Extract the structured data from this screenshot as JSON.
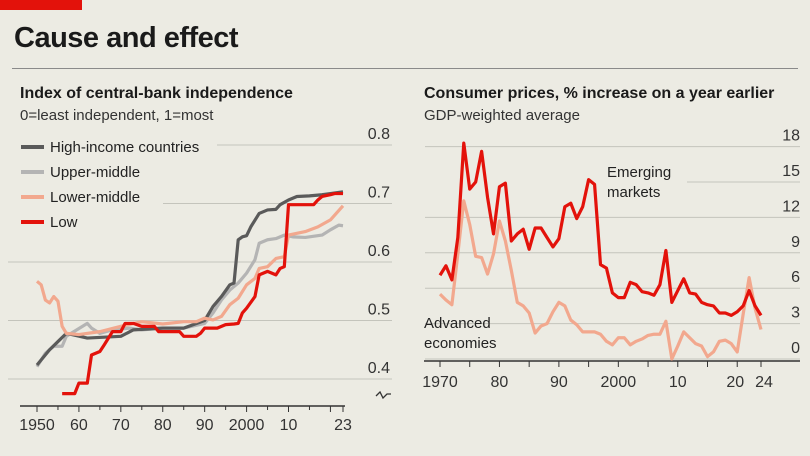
{
  "title": "Cause and effect",
  "colors": {
    "brand": "#e3120b",
    "high": "#5a5a5a",
    "upper": "#b4b4b4",
    "lower": "#f2a88e",
    "low": "#e3120b",
    "emerging": "#e3120b",
    "advanced": "#f2a88e"
  },
  "chart_data": [
    {
      "type": "line",
      "title": "Index of central-bank independence",
      "subtitle": "0=least independent, 1=most",
      "ylim": [
        0.37,
        0.8
      ],
      "yticks": [
        "0.8",
        "0.7",
        "0.6",
        "0.5",
        "0.4"
      ],
      "xticks": [
        "1950",
        "60",
        "70",
        "80",
        "90",
        "2000",
        "10",
        "23"
      ],
      "xlim": [
        1950,
        2023
      ],
      "grid": true,
      "legend": "top-left",
      "series": [
        {
          "name": "High-income countries",
          "x": [
            1950,
            1953,
            1955,
            1957,
            1962,
            1970,
            1973,
            1980,
            1985,
            1990,
            1992,
            1994,
            1996,
            1997,
            1998,
            1999,
            2000,
            2001,
            2003,
            2005,
            2007,
            2008,
            2010,
            2012,
            2015,
            2018,
            2020,
            2023
          ],
          "values": [
            0.424,
            0.45,
            0.464,
            0.478,
            0.47,
            0.473,
            0.484,
            0.487,
            0.487,
            0.5,
            0.524,
            0.541,
            0.561,
            0.564,
            0.638,
            0.643,
            0.645,
            0.66,
            0.683,
            0.689,
            0.69,
            0.698,
            0.706,
            0.712,
            0.713,
            0.715,
            0.717,
            0.72
          ]
        },
        {
          "name": "Upper-middle",
          "x": [
            1950,
            1952,
            1954,
            1956,
            1957,
            1962,
            1963,
            1965,
            1968,
            1972,
            1975,
            1980,
            1985,
            1990,
            1992,
            1994,
            1996,
            1998,
            2000,
            2002,
            2003,
            2005,
            2007,
            2009,
            2011,
            2014,
            2018,
            2020,
            2022,
            2023
          ],
          "values": [
            0.421,
            0.444,
            0.456,
            0.456,
            0.473,
            0.495,
            0.487,
            0.478,
            0.484,
            0.487,
            0.484,
            0.487,
            0.487,
            0.495,
            0.513,
            0.535,
            0.552,
            0.564,
            0.581,
            0.604,
            0.632,
            0.638,
            0.64,
            0.646,
            0.643,
            0.642,
            0.646,
            0.655,
            0.663,
            0.662
          ]
        },
        {
          "name": "Lower-middle",
          "x": [
            1950,
            1951,
            1952,
            1953,
            1954,
            1955,
            1956,
            1957,
            1960,
            1965,
            1970,
            1975,
            1980,
            1985,
            1988,
            1990,
            1992,
            1994,
            1996,
            1998,
            2000,
            2002,
            2003,
            2005,
            2007,
            2009,
            2010,
            2014,
            2017,
            2020,
            2023
          ],
          "values": [
            0.567,
            0.561,
            0.535,
            0.53,
            0.541,
            0.533,
            0.49,
            0.478,
            0.476,
            0.481,
            0.49,
            0.498,
            0.494,
            0.498,
            0.498,
            0.504,
            0.501,
            0.507,
            0.527,
            0.538,
            0.561,
            0.572,
            0.589,
            0.592,
            0.606,
            0.609,
            0.646,
            0.652,
            0.66,
            0.672,
            0.696
          ]
        },
        {
          "name": "Low",
          "x": [
            1956,
            1959,
            1960,
            1962,
            1963,
            1965,
            1966,
            1968,
            1970,
            1971,
            1973,
            1975,
            1978,
            1979,
            1984,
            1985,
            1988,
            1989,
            1990,
            1993,
            1995,
            1997,
            1998,
            1999,
            2000,
            2002,
            2003,
            2005,
            2006,
            2007,
            2008,
            2009,
            2010,
            2016,
            2017,
            2018,
            2020,
            2021,
            2023
          ],
          "values": [
            0.375,
            0.375,
            0.393,
            0.393,
            0.441,
            0.447,
            0.458,
            0.481,
            0.481,
            0.495,
            0.495,
            0.49,
            0.49,
            0.481,
            0.481,
            0.473,
            0.473,
            0.478,
            0.487,
            0.487,
            0.493,
            0.494,
            0.495,
            0.513,
            0.521,
            0.541,
            0.578,
            0.584,
            0.581,
            0.578,
            0.589,
            0.592,
            0.698,
            0.698,
            0.706,
            0.712,
            0.715,
            0.717,
            0.717
          ]
        }
      ]
    },
    {
      "type": "line",
      "title": "Consumer prices, % increase on a year earlier",
      "subtitle": "GDP-weighted average",
      "ylim": [
        0,
        18
      ],
      "yticks": [
        "18",
        "15",
        "12",
        "9",
        "6",
        "3",
        "0"
      ],
      "xticks": [
        "1970",
        "80",
        "90",
        "2000",
        "10",
        "20",
        "24"
      ],
      "xlim": [
        1970,
        2024
      ],
      "grid": true,
      "annotations": [
        "Emerging markets",
        "Advanced economies"
      ],
      "x_start": 1970,
      "series": [
        {
          "name": "Emerging markets",
          "values": [
            7.1,
            7.9,
            6.7,
            10.3,
            18.3,
            14.4,
            15,
            17.6,
            13.7,
            10.6,
            14.6,
            14.9,
            10,
            10.6,
            11,
            9.3,
            11.1,
            11.1,
            10.3,
            9.5,
            10.2,
            12.9,
            13.2,
            11.9,
            12.9,
            15.2,
            14.8,
            8,
            7.7,
            5.6,
            5.2,
            5.2,
            6.5,
            6.3,
            5.7,
            5.6,
            5.4,
            6.3,
            9.2,
            4.8,
            5.8,
            6.8,
            5.6,
            5.5,
            4.8,
            4.6,
            4.5,
            3.9,
            3.9,
            3.7,
            4,
            4.5,
            5.8,
            4.5,
            3.7
          ]
        },
        {
          "name": "Advanced economies",
          "values": [
            5.5,
            5,
            4.6,
            8.9,
            13.4,
            11.4,
            8.7,
            8.6,
            7.2,
            8.9,
            11.7,
            10,
            7.5,
            4.8,
            4.5,
            3.9,
            2.2,
            2.8,
            3,
            4,
            4.8,
            4.5,
            3.3,
            2.9,
            2.3,
            2.3,
            2.3,
            2.1,
            1.5,
            1.2,
            1.8,
            1.8,
            1.2,
            1.5,
            1.7,
            2,
            2.1,
            2.1,
            3.2,
            0,
            1.1,
            2.3,
            1.8,
            1.3,
            1.1,
            0.2,
            0.6,
            1.5,
            1.6,
            1.3,
            0.6,
            3.8,
            6.9,
            4.3,
            2.5
          ]
        }
      ]
    }
  ]
}
